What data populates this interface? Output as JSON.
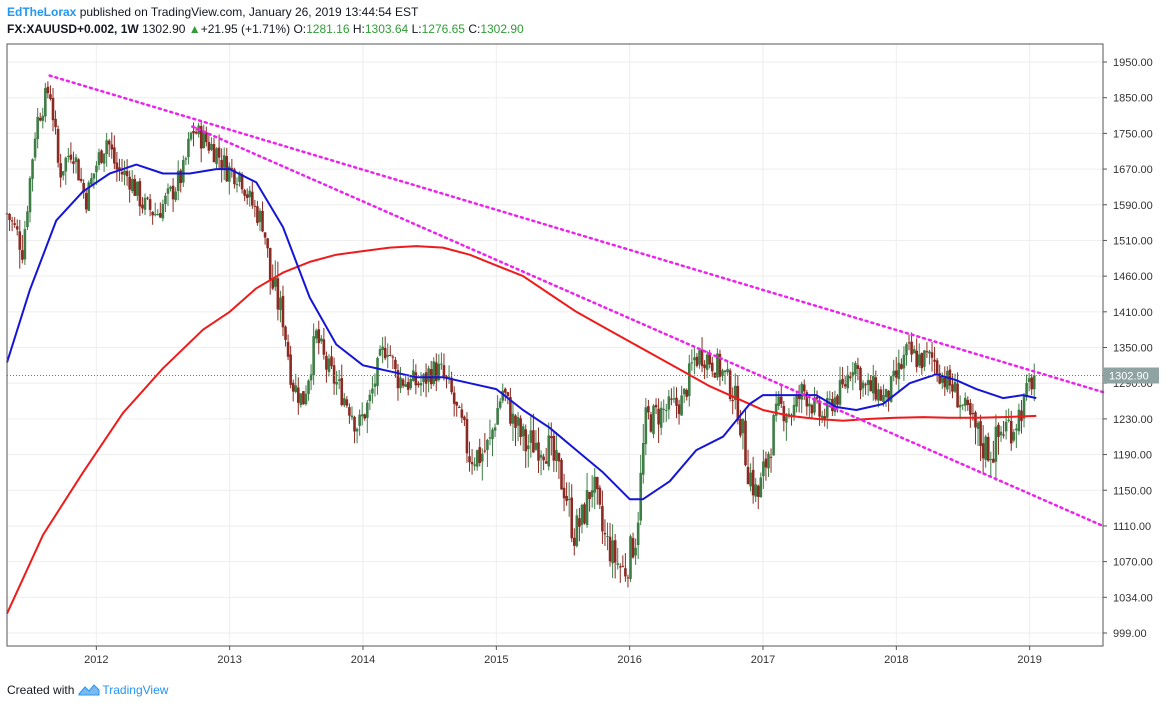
{
  "header": {
    "author": "EdTheLorax",
    "published": "published on TradingView.com, January 26, 2019 13:44:54 EST",
    "symbol": "FX:XAUUSD+0.002, 1W",
    "last": "1302.90",
    "arrow": "▲",
    "change": "+21.95 (+1.71%)",
    "o_label": "O:",
    "o_value": "1281.16",
    "h_label": "H:",
    "h_value": "1303.64",
    "l_label": "L:",
    "l_value": "1276.65",
    "c_label": "C:",
    "c_value": "1302.90"
  },
  "footer": {
    "created_with": "Created with",
    "brand": "TradingView"
  },
  "colors": {
    "up_candle": "#3e7d46",
    "down_candle": "#8b2a22",
    "ma_fast": "#1515d9",
    "ma_slow": "#ef1a1a",
    "trendline": "#ee22ee",
    "price_line": "#2e9e6a",
    "price_label_bg": "#8fa3a3",
    "grid": "#eeeeee",
    "axis": "#555555"
  },
  "chart_data": {
    "type": "candlestick",
    "timeframe": "1W",
    "y_ticks": [
      999,
      1034,
      1070,
      1110,
      1150,
      1190,
      1230,
      1290,
      1350,
      1410,
      1460,
      1510,
      1590,
      1670,
      1750,
      1850,
      1950
    ],
    "y_tick_labels": [
      "999.00",
      "1034.00",
      "1070.00",
      "1110.00",
      "1150.00",
      "1190.00",
      "1230.00",
      "1290.00",
      "1350.00",
      "1410.00",
      "1460.00",
      "1510.00",
      "1590.00",
      "1670.00",
      "1750.00",
      "1850.00",
      "1950.00"
    ],
    "x_labels": [
      "2012",
      "2013",
      "2014",
      "2015",
      "2016",
      "2017",
      "2018",
      "2019"
    ],
    "x_range": [
      2011.33,
      2019.55
    ],
    "last_price": 1302.9,
    "last_price_label": "1302.90",
    "anchors": [
      [
        2011.33,
        1570
      ],
      [
        2011.45,
        1500
      ],
      [
        2011.55,
        1780
      ],
      [
        2011.65,
        1880
      ],
      [
        2011.72,
        1660
      ],
      [
        2011.82,
        1720
      ],
      [
        2011.92,
        1600
      ],
      [
        2012.0,
        1680
      ],
      [
        2012.08,
        1740
      ],
      [
        2012.15,
        1670
      ],
      [
        2012.25,
        1650
      ],
      [
        2012.35,
        1590
      ],
      [
        2012.45,
        1570
      ],
      [
        2012.55,
        1610
      ],
      [
        2012.65,
        1660
      ],
      [
        2012.72,
        1760
      ],
      [
        2012.8,
        1740
      ],
      [
        2012.9,
        1710
      ],
      [
        2012.98,
        1670
      ],
      [
        2013.08,
        1660
      ],
      [
        2013.15,
        1600
      ],
      [
        2013.25,
        1550
      ],
      [
        2013.3,
        1460
      ],
      [
        2013.4,
        1400
      ],
      [
        2013.47,
        1290
      ],
      [
        2013.55,
        1260
      ],
      [
        2013.65,
        1370
      ],
      [
        2013.72,
        1320
      ],
      [
        2013.8,
        1290
      ],
      [
        2013.9,
        1250
      ],
      [
        2013.97,
        1220
      ],
      [
        2014.05,
        1260
      ],
      [
        2014.12,
        1320
      ],
      [
        2014.18,
        1360
      ],
      [
        2014.25,
        1300
      ],
      [
        2014.35,
        1290
      ],
      [
        2014.45,
        1290
      ],
      [
        2014.5,
        1310
      ],
      [
        2014.58,
        1310
      ],
      [
        2014.65,
        1280
      ],
      [
        2014.72,
        1230
      ],
      [
        2014.8,
        1190
      ],
      [
        2014.88,
        1190
      ],
      [
        2014.95,
        1200
      ],
      [
        2015.05,
        1280
      ],
      [
        2015.12,
        1230
      ],
      [
        2015.22,
        1200
      ],
      [
        2015.3,
        1205
      ],
      [
        2015.38,
        1200
      ],
      [
        2015.45,
        1175
      ],
      [
        2015.52,
        1150
      ],
      [
        2015.58,
        1100
      ],
      [
        2015.65,
        1120
      ],
      [
        2015.72,
        1160
      ],
      [
        2015.8,
        1100
      ],
      [
        2015.9,
        1070
      ],
      [
        2015.96,
        1060
      ],
      [
        2016.05,
        1100
      ],
      [
        2016.12,
        1230
      ],
      [
        2016.22,
        1240
      ],
      [
        2016.32,
        1250
      ],
      [
        2016.4,
        1260
      ],
      [
        2016.48,
        1330
      ],
      [
        2016.55,
        1340
      ],
      [
        2016.65,
        1320
      ],
      [
        2016.72,
        1300
      ],
      [
        2016.8,
        1260
      ],
      [
        2016.88,
        1180
      ],
      [
        2016.96,
        1140
      ],
      [
        2017.05,
        1200
      ],
      [
        2017.12,
        1250
      ],
      [
        2017.22,
        1240
      ],
      [
        2017.3,
        1280
      ],
      [
        2017.38,
        1250
      ],
      [
        2017.45,
        1230
      ],
      [
        2017.52,
        1260
      ],
      [
        2017.6,
        1280
      ],
      [
        2017.68,
        1330
      ],
      [
        2017.76,
        1280
      ],
      [
        2017.84,
        1280
      ],
      [
        2017.92,
        1260
      ],
      [
        2018.0,
        1300
      ],
      [
        2018.08,
        1340
      ],
      [
        2018.18,
        1330
      ],
      [
        2018.28,
        1330
      ],
      [
        2018.35,
        1300
      ],
      [
        2018.43,
        1280
      ],
      [
        2018.5,
        1250
      ],
      [
        2018.58,
        1220
      ],
      [
        2018.65,
        1200
      ],
      [
        2018.72,
        1195
      ],
      [
        2018.8,
        1220
      ],
      [
        2018.88,
        1225
      ],
      [
        2018.95,
        1250
      ],
      [
        2019.0,
        1290
      ],
      [
        2019.05,
        1302.9
      ]
    ],
    "ma_fast": [
      [
        2011.33,
        1325
      ],
      [
        2011.5,
        1440
      ],
      [
        2011.7,
        1555
      ],
      [
        2011.9,
        1620
      ],
      [
        2012.1,
        1660
      ],
      [
        2012.3,
        1680
      ],
      [
        2012.5,
        1660
      ],
      [
        2012.7,
        1660
      ],
      [
        2012.9,
        1670
      ],
      [
        2013.0,
        1670
      ],
      [
        2013.2,
        1640
      ],
      [
        2013.4,
        1540
      ],
      [
        2013.6,
        1430
      ],
      [
        2013.8,
        1355
      ],
      [
        2014.0,
        1320
      ],
      [
        2014.2,
        1310
      ],
      [
        2014.4,
        1300
      ],
      [
        2014.6,
        1300
      ],
      [
        2014.8,
        1290
      ],
      [
        2015.0,
        1280
      ],
      [
        2015.2,
        1245
      ],
      [
        2015.4,
        1220
      ],
      [
        2015.6,
        1195
      ],
      [
        2015.8,
        1170
      ],
      [
        2016.0,
        1140
      ],
      [
        2016.1,
        1140
      ],
      [
        2016.3,
        1160
      ],
      [
        2016.5,
        1195
      ],
      [
        2016.7,
        1210
      ],
      [
        2016.9,
        1255
      ],
      [
        2017.0,
        1270
      ],
      [
        2017.2,
        1270
      ],
      [
        2017.4,
        1270
      ],
      [
        2017.55,
        1250
      ],
      [
        2017.7,
        1245
      ],
      [
        2017.9,
        1255
      ],
      [
        2018.1,
        1290
      ],
      [
        2018.3,
        1305
      ],
      [
        2018.45,
        1295
      ],
      [
        2018.6,
        1280
      ],
      [
        2018.8,
        1265
      ],
      [
        2018.95,
        1270
      ],
      [
        2019.05,
        1265
      ]
    ],
    "ma_slow": [
      [
        2011.33,
        1018
      ],
      [
        2011.6,
        1100
      ],
      [
        2011.9,
        1170
      ],
      [
        2012.2,
        1240
      ],
      [
        2012.5,
        1315
      ],
      [
        2012.8,
        1380
      ],
      [
        2013.0,
        1410
      ],
      [
        2013.2,
        1443
      ],
      [
        2013.4,
        1465
      ],
      [
        2013.6,
        1480
      ],
      [
        2013.8,
        1490
      ],
      [
        2014.0,
        1495
      ],
      [
        2014.2,
        1500
      ],
      [
        2014.4,
        1502
      ],
      [
        2014.6,
        1500
      ],
      [
        2014.8,
        1490
      ],
      [
        2015.0,
        1475
      ],
      [
        2015.2,
        1460
      ],
      [
        2015.4,
        1435
      ],
      [
        2015.6,
        1410
      ],
      [
        2015.8,
        1385
      ],
      [
        2016.0,
        1360
      ],
      [
        2016.2,
        1335
      ],
      [
        2016.4,
        1310
      ],
      [
        2016.6,
        1285
      ],
      [
        2016.8,
        1265
      ],
      [
        2017.0,
        1245
      ],
      [
        2017.2,
        1235
      ],
      [
        2017.4,
        1230
      ],
      [
        2017.6,
        1228
      ],
      [
        2017.8,
        1230
      ],
      [
        2018.0,
        1232
      ],
      [
        2018.2,
        1233
      ],
      [
        2018.4,
        1232
      ],
      [
        2018.6,
        1232
      ],
      [
        2018.8,
        1233
      ],
      [
        2019.05,
        1235
      ]
    ],
    "trendlines": [
      {
        "from": [
          2011.65,
          1912
        ],
        "to": [
          2019.55,
          1275
        ]
      },
      {
        "from": [
          2012.72,
          1769
        ],
        "to": [
          2019.55,
          1110
        ]
      }
    ]
  }
}
